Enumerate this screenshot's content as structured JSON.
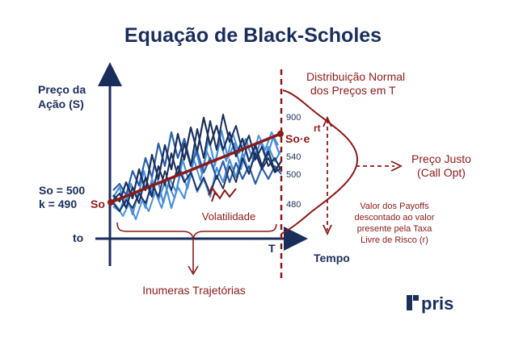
{
  "title": "Equação de Black-Scholes",
  "y_axis_label_line1": "Preço da",
  "y_axis_label_line2": "Ação (S)",
  "x_axis_label": "Tempo",
  "so_eq": "So = 500",
  "k_eq": "k = 490",
  "so_point": "So",
  "t0": "to",
  "t_label": "T",
  "end_expression_base": "So·e",
  "end_expression_exp": "rt",
  "price_levels": [
    "900",
    "540",
    "500",
    "480"
  ],
  "normal_dist_line1": "Distribuição Normal",
  "normal_dist_line2": "dos Preços em T",
  "fair_price_line1": "Preço Justo",
  "fair_price_line2": "(Call Opt)",
  "volatility": "Volatilidade",
  "trajectories": "Inumeras Trajetórias",
  "payoff_line1": "Valor dos Payoffs",
  "payoff_line2": "descontado ao valor",
  "payoff_line3": "presente pela Taxa",
  "payoff_line4": "Livre de Risco (r)",
  "logo_text": "pris",
  "colors": {
    "navy": "#1a2e5c",
    "dark_red": "#8b1a1a",
    "light_blue": "#4a90d9",
    "mid_blue": "#2a5fa8"
  }
}
